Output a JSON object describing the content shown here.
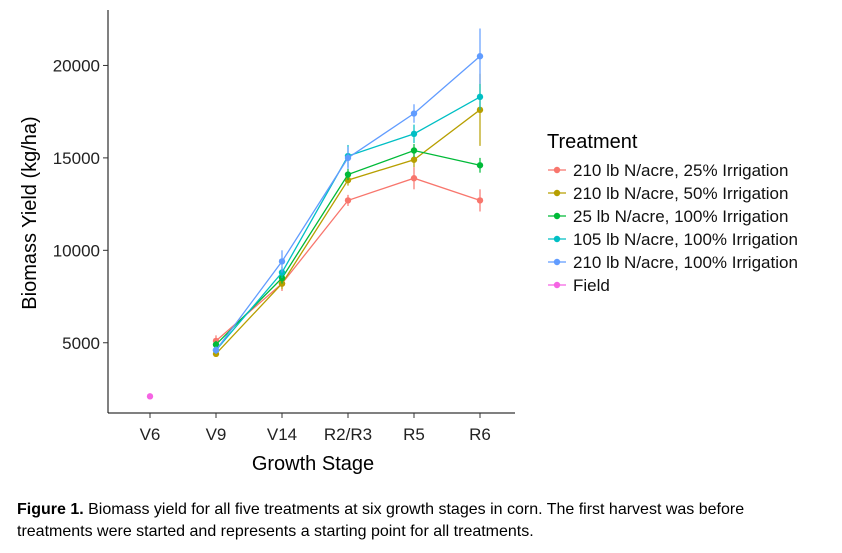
{
  "chart_data": {
    "type": "line",
    "xlabel": "Growth Stage",
    "ylabel": "Biomass Yield (kg/ha)",
    "categories": [
      "V6",
      "V9",
      "V14",
      "R2/R3",
      "R5",
      "R6"
    ],
    "ylim": [
      1200,
      23000
    ],
    "yticks": [
      5000,
      10000,
      15000,
      20000
    ],
    "grid": false,
    "legend": {
      "title": "Treatment",
      "placement": "right"
    },
    "series": [
      {
        "name": "210 lb N/acre, 25% Irrigation",
        "color": "#F8766D",
        "values": [
          null,
          5100,
          8200,
          12700,
          13900,
          12700
        ],
        "err": [
          null,
          300,
          400,
          300,
          600,
          600
        ]
      },
      {
        "name": "210 lb N/acre, 50% Irrigation",
        "color": "#B79F00",
        "values": [
          null,
          4400,
          8200,
          13800,
          14900,
          17600
        ],
        "err": [
          null,
          150,
          300,
          300,
          400,
          1950
        ]
      },
      {
        "name": "25 lb N/acre, 100% Irrigation",
        "color": "#00BA38",
        "values": [
          null,
          4900,
          8500,
          14100,
          15400,
          14600
        ],
        "err": [
          null,
          200,
          300,
          300,
          350,
          400
        ]
      },
      {
        "name": "105 lb N/acre, 100% Irrigation",
        "color": "#00BFC4",
        "values": [
          null,
          4600,
          8800,
          15100,
          16300,
          18300
        ],
        "err": [
          null,
          200,
          300,
          600,
          500,
          700
        ]
      },
      {
        "name": "210 lb N/acre, 100% Irrigation",
        "color": "#619CFF",
        "values": [
          null,
          4600,
          9400,
          15000,
          17400,
          20500
        ],
        "err": [
          null,
          200,
          600,
          600,
          500,
          1500
        ]
      },
      {
        "name": "Field",
        "color": "#F564E3",
        "values": [
          2100,
          null,
          null,
          null,
          null,
          null
        ],
        "err": [
          null,
          null,
          null,
          null,
          null,
          null
        ]
      }
    ]
  },
  "caption": {
    "label": "Figure 1.",
    "text": " Biomass yield for all five treatments at six growth stages in corn. The first harvest was before treatments were started and represents a starting point for all treatments."
  }
}
